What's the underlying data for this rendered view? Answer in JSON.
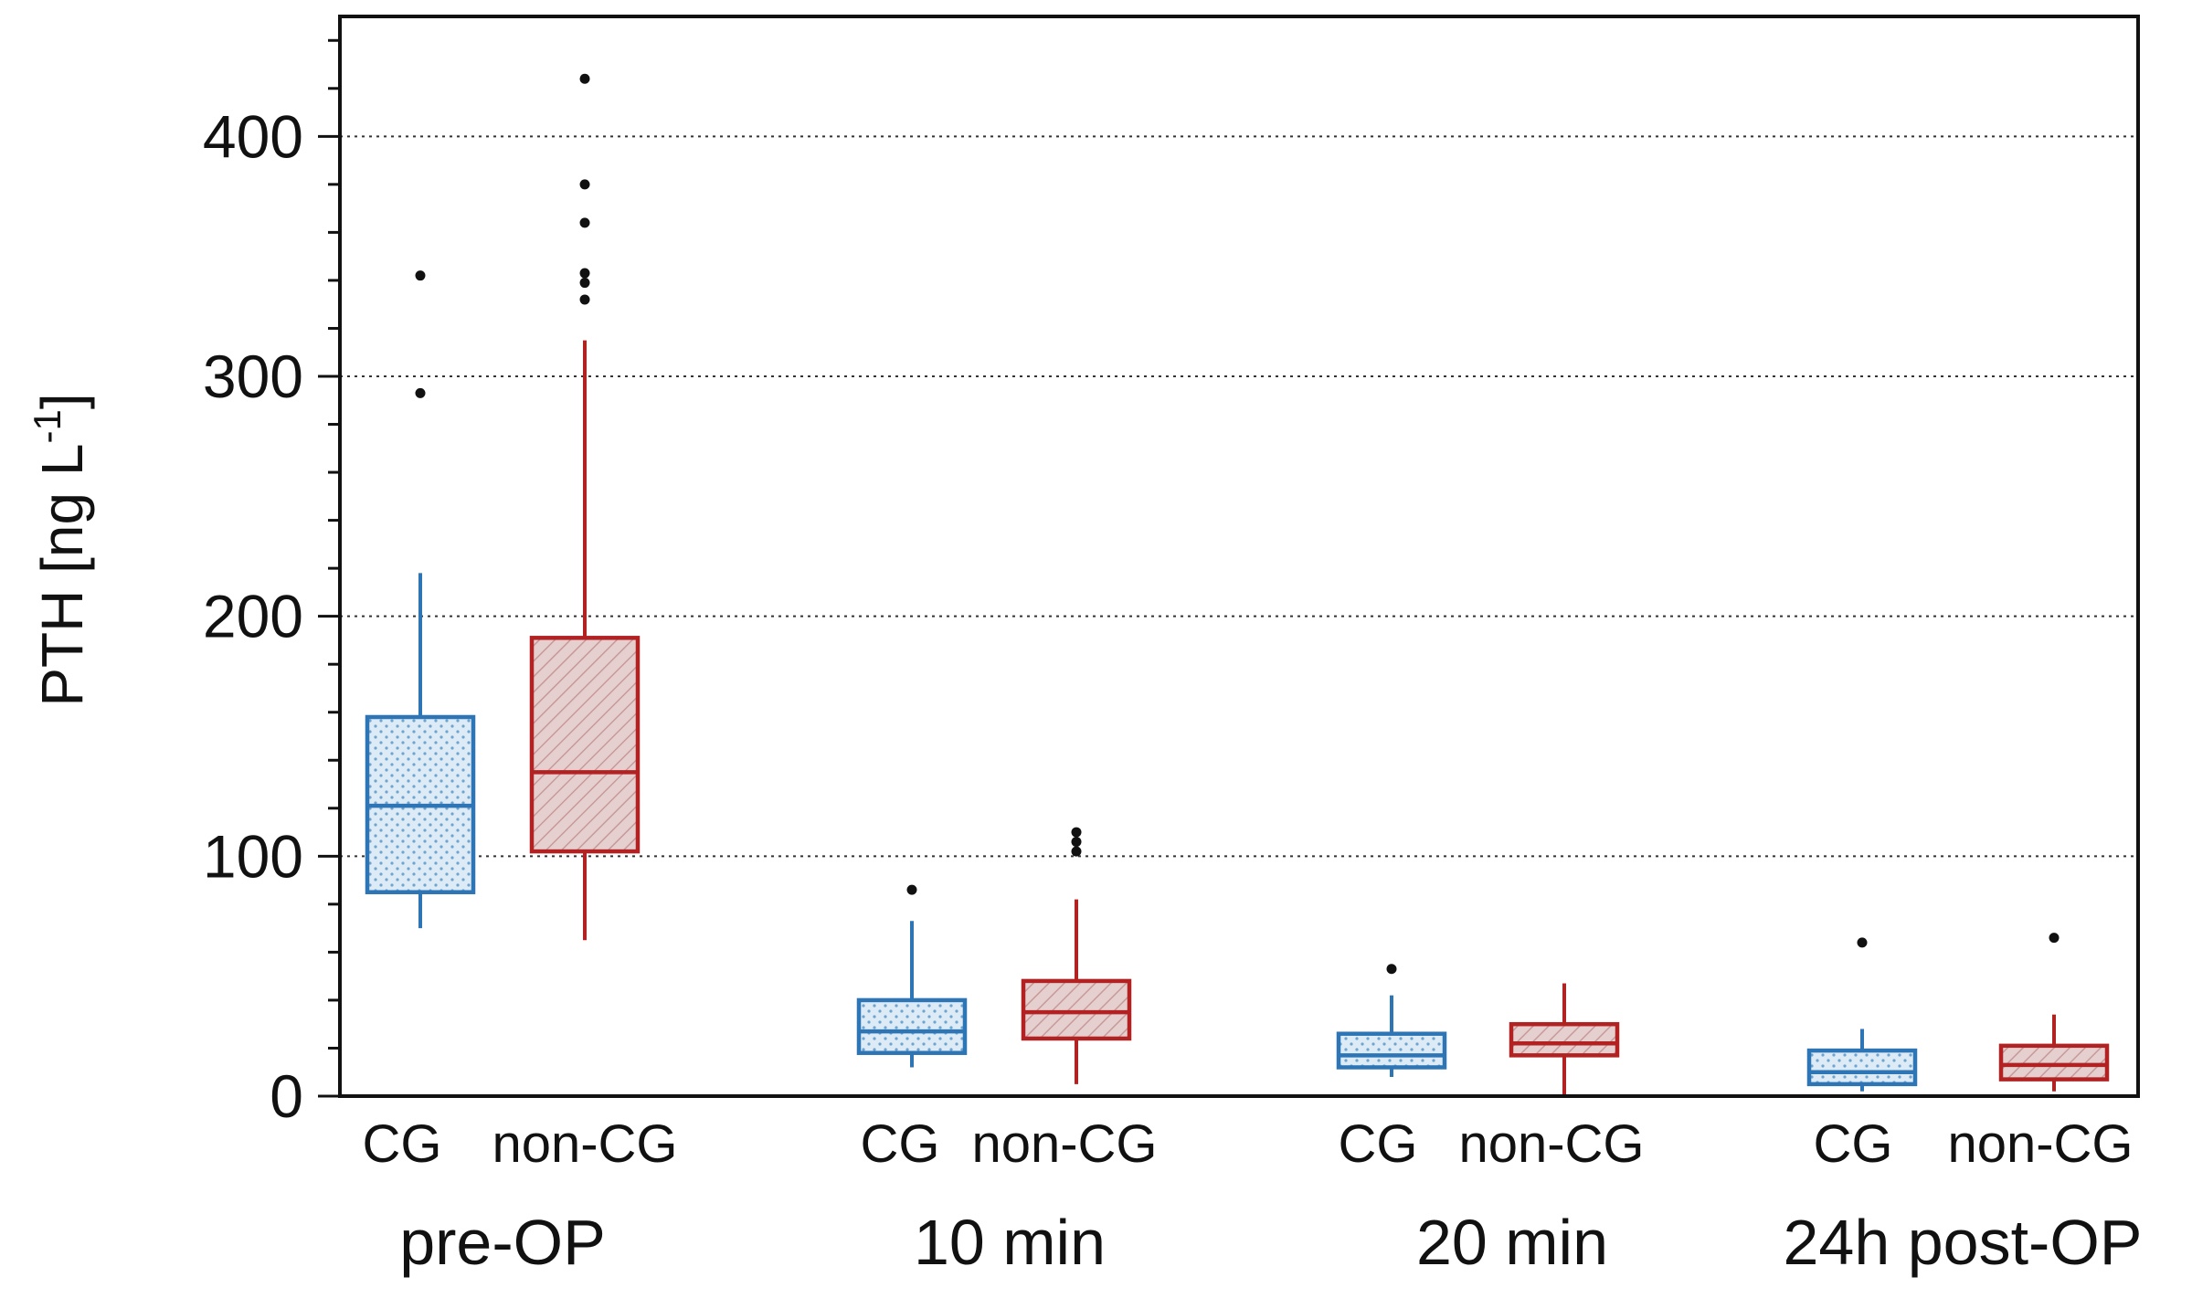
{
  "chart_data": {
    "type": "box",
    "title": "",
    "ylabel_main": "PTH [ng L",
    "ylabel_sup": "-1",
    "ylabel_end": "]",
    "xlabel": "",
    "ylim": [
      0,
      450
    ],
    "yticks": [
      0,
      100,
      200,
      300,
      400
    ],
    "grid": "horizontal dotted",
    "colors": {
      "CG": "#2e75b6",
      "non-CG": "#b22222",
      "CG_fill": "#d7e9f5",
      "nonCG_fill": "#e2caca"
    },
    "timepoints": [
      "pre-OP",
      "10 min",
      "20 min",
      "24h post-OP"
    ],
    "group_labels": [
      "CG",
      "non-CG"
    ],
    "boxes": [
      {
        "timepoint": "pre-OP",
        "group": "CG",
        "whisker_low": 70,
        "q1": 85,
        "median": 121,
        "q3": 158,
        "whisker_high": 218,
        "outliers": [
          293,
          342
        ]
      },
      {
        "timepoint": "pre-OP",
        "group": "non-CG",
        "whisker_low": 65,
        "q1": 102,
        "median": 135,
        "q3": 191,
        "whisker_high": 315,
        "outliers": [
          332,
          339,
          343,
          364,
          380,
          424
        ]
      },
      {
        "timepoint": "10 min",
        "group": "CG",
        "whisker_low": 12,
        "q1": 18,
        "median": 27,
        "q3": 40,
        "whisker_high": 73,
        "outliers": [
          86
        ]
      },
      {
        "timepoint": "10 min",
        "group": "non-CG",
        "whisker_low": 5,
        "q1": 24,
        "median": 35,
        "q3": 48,
        "whisker_high": 82,
        "outliers": [
          102,
          106,
          110
        ]
      },
      {
        "timepoint": "20 min",
        "group": "CG",
        "whisker_low": 8,
        "q1": 12,
        "median": 17,
        "q3": 26,
        "whisker_high": 42,
        "outliers": [
          53
        ]
      },
      {
        "timepoint": "20 min",
        "group": "non-CG",
        "whisker_low": 0,
        "q1": 17,
        "median": 22,
        "q3": 30,
        "whisker_high": 47,
        "outliers": []
      },
      {
        "timepoint": "24h post-OP",
        "group": "CG",
        "whisker_low": 2,
        "q1": 5,
        "median": 10,
        "q3": 19,
        "whisker_high": 28,
        "outliers": [
          64
        ]
      },
      {
        "timepoint": "24h post-OP",
        "group": "non-CG",
        "whisker_low": 2,
        "q1": 7,
        "median": 13,
        "q3": 21,
        "whisker_high": 34,
        "outliers": [
          66
        ]
      }
    ]
  }
}
